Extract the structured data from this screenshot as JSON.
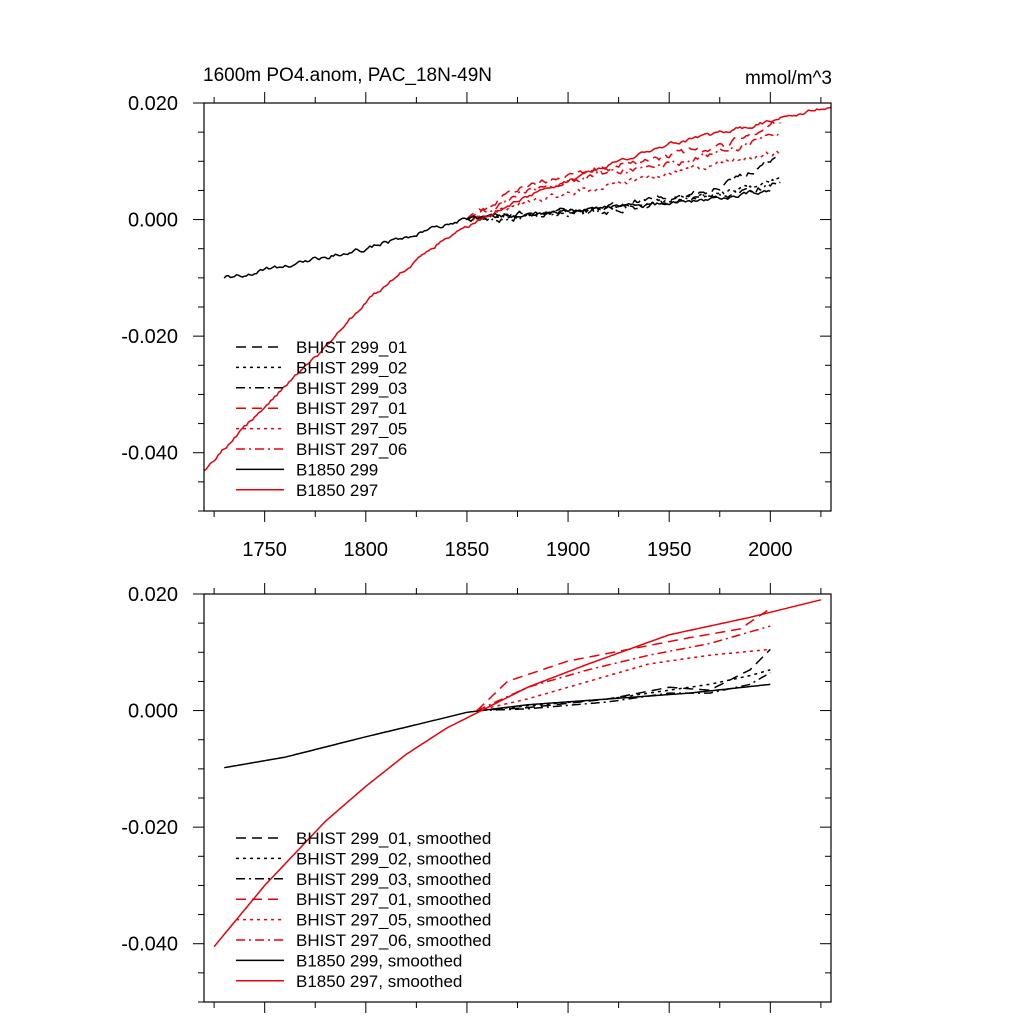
{
  "figure": {
    "title_left": "1600m PO4.anom, PAC_18N-49N",
    "title_right": "mmol/m^3"
  },
  "colors": {
    "black": "#000000",
    "red": "#e8000b"
  },
  "chart_data": [
    {
      "type": "line",
      "title": "1600m PO4.anom, PAC_18N-49N",
      "units": "mmol/m^3",
      "xlim": [
        1720,
        2030
      ],
      "ylim": [
        -0.05,
        0.02
      ],
      "x_ticks": [
        1750,
        1800,
        1850,
        1900,
        1950,
        2000
      ],
      "x_tick_labels": [
        "1750",
        "1800",
        "1850",
        "1900",
        "1950",
        "2000"
      ],
      "y_ticks": [
        0.02,
        0.0,
        -0.02,
        -0.04
      ],
      "y_tick_labels": [
        "0.020",
        "0.000",
        "-0.020",
        "-0.040"
      ],
      "legend_position": "bottom-left",
      "series": [
        {
          "name": "BHIST 299_01",
          "color": "#000000",
          "dash": "long-dash",
          "noise": 0.0009,
          "x": [
            1850,
            1880,
            1920,
            1950,
            1970,
            1990,
            2005
          ],
          "y": [
            0.0,
            0.001,
            0.002,
            0.004,
            0.0045,
            0.008,
            0.011
          ]
        },
        {
          "name": "BHIST 299_02",
          "color": "#000000",
          "dash": "dot",
          "noise": 0.0008,
          "x": [
            1850,
            1880,
            1920,
            1950,
            1970,
            1990,
            2005
          ],
          "y": [
            0.0,
            0.001,
            0.002,
            0.0035,
            0.004,
            0.0055,
            0.007
          ]
        },
        {
          "name": "BHIST 299_03",
          "color": "#000000",
          "dash": "dash-dot",
          "noise": 0.0009,
          "x": [
            1850,
            1880,
            1920,
            1950,
            1970,
            1990,
            2005
          ],
          "y": [
            0.0,
            0.0005,
            0.0015,
            0.003,
            0.0035,
            0.005,
            0.0065
          ]
        },
        {
          "name": "BHIST 297_01",
          "color": "#e8000b",
          "dash": "long-dash",
          "noise": 0.0009,
          "x": [
            1850,
            1880,
            1920,
            1950,
            1980,
            2005
          ],
          "y": [
            0.0,
            0.006,
            0.009,
            0.011,
            0.013,
            0.017
          ]
        },
        {
          "name": "BHIST 297_05",
          "color": "#e8000b",
          "dash": "dot",
          "noise": 0.0008,
          "x": [
            1850,
            1880,
            1920,
            1950,
            1980,
            2005
          ],
          "y": [
            0.0,
            0.003,
            0.006,
            0.008,
            0.01,
            0.0115
          ]
        },
        {
          "name": "BHIST 297_06",
          "color": "#e8000b",
          "dash": "dash-dot",
          "noise": 0.0009,
          "x": [
            1850,
            1880,
            1920,
            1950,
            1980,
            2005
          ],
          "y": [
            0.0,
            0.005,
            0.008,
            0.0095,
            0.012,
            0.015
          ]
        },
        {
          "name": "B1850 299",
          "color": "#000000",
          "dash": "solid",
          "noise": 0.0006,
          "x": [
            1730,
            1760,
            1800,
            1830,
            1850,
            1880,
            1920,
            1960,
            2000
          ],
          "y": [
            -0.01,
            -0.008,
            -0.005,
            -0.002,
            0.0,
            0.001,
            0.002,
            0.003,
            0.005
          ]
        },
        {
          "name": "B1850 297",
          "color": "#e8000b",
          "dash": "solid",
          "noise": 0.0005,
          "x": [
            1720,
            1750,
            1780,
            1800,
            1820,
            1840,
            1860,
            1880,
            1910,
            1950,
            1990,
            2030
          ],
          "y": [
            -0.043,
            -0.032,
            -0.022,
            -0.014,
            -0.0085,
            -0.003,
            0.0005,
            0.004,
            0.008,
            0.013,
            0.016,
            0.0195
          ]
        }
      ]
    },
    {
      "type": "line",
      "xlim": [
        1720,
        2030
      ],
      "ylim": [
        -0.05,
        0.02
      ],
      "x_ticks": [
        1750,
        1800,
        1850,
        1900,
        1950,
        2000
      ],
      "x_tick_labels": [],
      "y_ticks": [
        0.02,
        0.0,
        -0.02,
        -0.04
      ],
      "y_tick_labels": [
        "0.020",
        "0.000",
        "-0.020",
        "-0.040"
      ],
      "legend_position": "bottom-left",
      "series": [
        {
          "name": "BHIST 299_01, smoothed",
          "color": "#000000",
          "dash": "long-dash",
          "noise": 0,
          "x": [
            1855,
            1880,
            1920,
            1950,
            1970,
            1990,
            2000
          ],
          "y": [
            0.0,
            0.0005,
            0.002,
            0.004,
            0.0035,
            0.007,
            0.0105
          ]
        },
        {
          "name": "BHIST 299_02, smoothed",
          "color": "#000000",
          "dash": "dot",
          "noise": 0,
          "x": [
            1855,
            1880,
            1920,
            1950,
            1970,
            1990,
            2000
          ],
          "y": [
            0.0,
            0.0008,
            0.002,
            0.0035,
            0.0045,
            0.006,
            0.007
          ]
        },
        {
          "name": "BHIST 299_03, smoothed",
          "color": "#000000",
          "dash": "dash-dot",
          "noise": 0,
          "x": [
            1855,
            1880,
            1920,
            1950,
            1970,
            1990,
            2000
          ],
          "y": [
            0.0,
            0.0003,
            0.0015,
            0.003,
            0.003,
            0.0045,
            0.0065
          ]
        },
        {
          "name": "BHIST 297_01, smoothed",
          "color": "#e8000b",
          "dash": "long-dash",
          "noise": 0,
          "x": [
            1855,
            1870,
            1900,
            1930,
            1960,
            1985,
            2000
          ],
          "y": [
            0.0,
            0.005,
            0.0085,
            0.0105,
            0.0125,
            0.014,
            0.0175
          ]
        },
        {
          "name": "BHIST 297_05, smoothed",
          "color": "#e8000b",
          "dash": "dot",
          "noise": 0,
          "x": [
            1855,
            1880,
            1910,
            1940,
            1970,
            2000
          ],
          "y": [
            0.0,
            0.002,
            0.005,
            0.008,
            0.0095,
            0.0105
          ]
        },
        {
          "name": "BHIST 297_06, smoothed",
          "color": "#e8000b",
          "dash": "dash-dot",
          "noise": 0,
          "x": [
            1855,
            1880,
            1910,
            1940,
            1970,
            2000
          ],
          "y": [
            0.0,
            0.004,
            0.007,
            0.0095,
            0.0115,
            0.0145
          ]
        },
        {
          "name": "B1850 299, smoothed",
          "color": "#000000",
          "dash": "solid",
          "noise": 0,
          "x": [
            1730,
            1760,
            1800,
            1830,
            1850,
            1880,
            1920,
            1960,
            2000
          ],
          "y": [
            -0.0098,
            -0.008,
            -0.0045,
            -0.002,
            -0.0003,
            0.001,
            0.002,
            0.003,
            0.0045
          ]
        },
        {
          "name": "B1850 297, smoothed",
          "color": "#e8000b",
          "dash": "solid",
          "noise": 0,
          "x": [
            1725,
            1750,
            1780,
            1800,
            1820,
            1840,
            1860,
            1880,
            1910,
            1950,
            1990,
            2025
          ],
          "y": [
            -0.0405,
            -0.03,
            -0.019,
            -0.013,
            -0.0075,
            -0.003,
            0.0005,
            0.004,
            0.008,
            0.013,
            0.016,
            0.019
          ]
        }
      ]
    }
  ]
}
